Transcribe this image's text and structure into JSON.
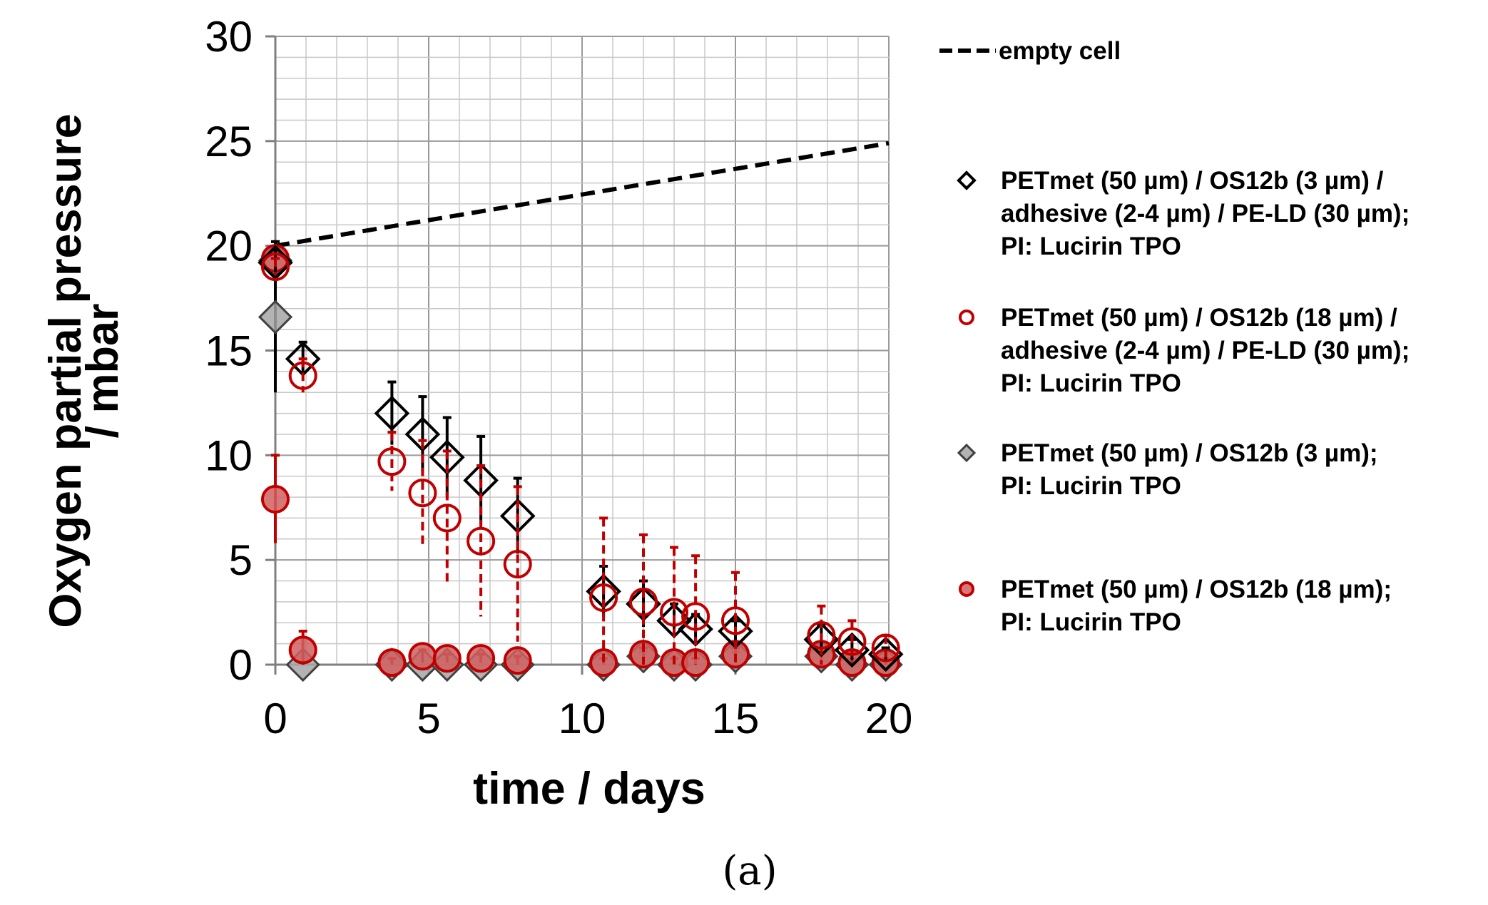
{
  "chart_data": {
    "type": "scatter",
    "title": "",
    "xlabel": "time / days",
    "ylabel_lines": [
      "Oxygen partial pressure",
      "/ mbar"
    ],
    "xlim": [
      0,
      20
    ],
    "ylim": [
      0,
      30
    ],
    "x_ticks": [
      "0",
      "5",
      "10",
      "15",
      "20"
    ],
    "y_ticks": [
      "0",
      "5",
      "10",
      "15",
      "20",
      "25",
      "30"
    ],
    "grid": true,
    "panel_label": "(a)",
    "legend_position": "right",
    "colors": {
      "black": "#000000",
      "red": "#c00000",
      "grey_fill": "#a6a6a6",
      "red_fill": "#d06060"
    },
    "series": [
      {
        "name": "empty cell",
        "label_lines": [
          "empty cell"
        ],
        "kind": "line",
        "style": "dashed",
        "x": [
          0,
          20
        ],
        "y": [
          20,
          24.9
        ]
      },
      {
        "name": "PETmet (50 µm) / OS12b (3 µm) / adhesive (2-4 µm) / PE-LD (30 µm); PI: Lucirin TPO",
        "label_lines": [
          "PETmet (50 µm) / OS12b (3 µm) /",
          "adhesive (2-4 µm) / PE-LD (30 µm);",
          "PI: Lucirin TPO"
        ],
        "marker": "diamond-open",
        "x": [
          0,
          0.9,
          3.8,
          4.8,
          5.6,
          6.7,
          7.9,
          10.7,
          12,
          13,
          13.7,
          15,
          17.8,
          18.8,
          19.9
        ],
        "y": [
          19.2,
          14.6,
          12,
          11,
          9.9,
          8.8,
          7.1,
          3.5,
          2.9,
          2.1,
          1.7,
          1.6,
          1.2,
          0.7,
          0.5
        ],
        "err": [
          0.6,
          0.8,
          1.5,
          1.8,
          1.9,
          2.1,
          1.8,
          1.2,
          1.1,
          0.8,
          0.7,
          0.5,
          0.7,
          0.5,
          0.3
        ]
      },
      {
        "name": "PETmet (50 µm) / OS12b (18 µm) / adhesive (2-4 µm) / PE-LD (30 µm); PI: Lucirin TPO",
        "label_lines": [
          "PETmet (50 µm) / OS12b (18 µm) /",
          "adhesive (2-4 µm) / PE-LD (30 µm);",
          "PI: Lucirin TPO"
        ],
        "marker": "circle-open",
        "x": [
          0,
          0.9,
          3.8,
          4.8,
          5.6,
          6.7,
          7.9,
          10.7,
          12,
          13,
          13.7,
          15,
          17.8,
          18.8,
          19.9
        ],
        "y": [
          19,
          13.8,
          9.7,
          8.2,
          7,
          5.9,
          4.8,
          3.2,
          3,
          2.5,
          2.3,
          2.1,
          1.4,
          1.1,
          0.8
        ],
        "err": [
          0.4,
          0.8,
          1.4,
          2.5,
          3.2,
          3.6,
          3.7,
          3.8,
          3.2,
          3.1,
          2.9,
          2.3,
          1.4,
          1.0,
          0.6
        ]
      },
      {
        "name": "PETmet (50 µm) / OS12b (3 µm); PI: Lucirin TPO",
        "label_lines": [
          "PETmet (50 µm) / OS12b (3 µm);",
          "PI: Lucirin TPO"
        ],
        "marker": "diamond-filled",
        "x": [
          0,
          0,
          0.9,
          3.8,
          4.8,
          5.6,
          6.7,
          7.9,
          10.7,
          12,
          13,
          13.7,
          15,
          17.8,
          18.8,
          19.9
        ],
        "y": [
          19.3,
          16.6,
          0,
          0,
          0,
          0,
          0,
          0,
          0,
          0.4,
          0,
          0,
          0.4,
          0.4,
          0,
          0
        ],
        "err": [
          0.4,
          3.6,
          0,
          0,
          0,
          0,
          0,
          0,
          0,
          0.2,
          0,
          0,
          0.2,
          0.2,
          0,
          0
        ]
      },
      {
        "name": "PETmet (50 µm) / OS12b (18 µm); PI: Lucirin TPO",
        "label_lines": [
          "PETmet (50 µm) / OS12b (18 µm);",
          "PI: Lucirin TPO"
        ],
        "marker": "circle-filled",
        "x": [
          0,
          0,
          0.9,
          3.8,
          4.8,
          5.6,
          6.7,
          7.9,
          10.7,
          12,
          13,
          13.7,
          15,
          17.8,
          18.8,
          19.9
        ],
        "y": [
          19.4,
          7.9,
          0.7,
          0.1,
          0.4,
          0.3,
          0.3,
          0.2,
          0.1,
          0.5,
          0.1,
          0.1,
          0.5,
          0.5,
          0.1,
          0.1
        ],
        "err": [
          0.3,
          2.1,
          0.9,
          0.2,
          0.3,
          0.2,
          0.2,
          0.2,
          0.2,
          0.3,
          0.2,
          0.2,
          0.3,
          0.3,
          0.2,
          0.2
        ]
      }
    ]
  }
}
